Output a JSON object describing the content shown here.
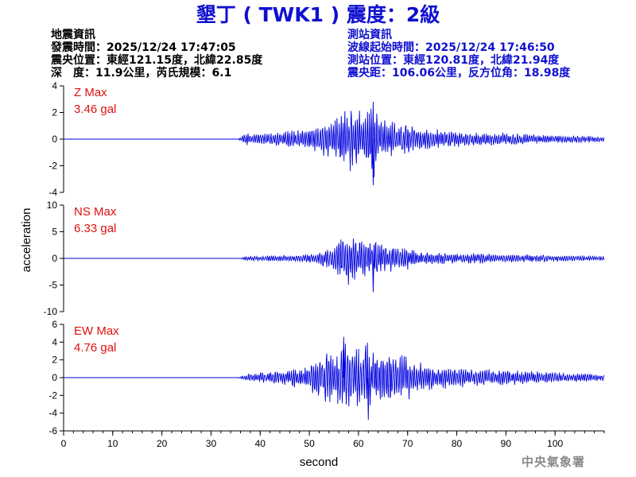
{
  "title": "墾丁 ( TWK1 ) 震度：2級",
  "earthquake_info": {
    "heading": "地震資訊",
    "origin_time": "發震時間：2025/12/24 17:47:05",
    "epicenter": "震央位置：東經121.15度，北緯22.85度",
    "depth_magnitude": "深　度：11.9公里，芮氏規模：6.1"
  },
  "station_info": {
    "heading": "測站資訊",
    "wave_onset_time": "波線起始時間：2025/12/24 17:46:50",
    "station_location": "測站位置：東經120.81度，北緯21.94度",
    "distance_azimuth": "震央距：106.06公里，反方位角：18.98度"
  },
  "watermark": "中央氣象署",
  "colors": {
    "trace": "#0000dd",
    "title": "#1010d0",
    "panel_label": "#e01010"
  },
  "chart_data": {
    "type": "line",
    "xlabel": "second",
    "ylabel": "acceleration",
    "xlim": [
      0,
      110
    ],
    "x_ticks": [
      0,
      10,
      20,
      30,
      40,
      50,
      60,
      70,
      80,
      90,
      100
    ],
    "panels": [
      {
        "name": "Z",
        "label_title": "Z Max",
        "label_value": "3.46 gal",
        "max": 3.46,
        "ylim": [
          -4,
          4
        ],
        "y_ticks": [
          4,
          2,
          0,
          -2,
          -4
        ],
        "series": {
          "x": [
            0,
            35.5,
            37,
            40,
            45,
            50,
            53,
            55,
            56,
            57,
            58,
            59,
            60,
            61,
            62,
            62.5,
            63,
            64,
            66,
            68,
            70,
            72,
            75,
            80,
            85,
            90,
            95,
            100,
            105,
            110
          ],
          "y": [
            0,
            0,
            0.5,
            0.4,
            0.6,
            0.8,
            1.5,
            1.2,
            2.5,
            -2.5,
            2.6,
            -2.2,
            2.4,
            -1.8,
            2.2,
            3.0,
            -3.46,
            1.6,
            1.8,
            1.2,
            1.6,
            1.0,
            0.8,
            0.6,
            0.5,
            0.5,
            0.4,
            0.3,
            0.3,
            0.2
          ]
        }
      },
      {
        "name": "NS",
        "label_title": "NS Max",
        "label_value": "6.33 gal",
        "max": 6.33,
        "ylim": [
          -10,
          10
        ],
        "y_ticks": [
          10,
          5,
          0,
          -5,
          -10
        ],
        "series": {
          "x": [
            0,
            35.5,
            37,
            40,
            45,
            50,
            53,
            55,
            56,
            57,
            58,
            59,
            60,
            61,
            62,
            62.5,
            63,
            64,
            66,
            68,
            70,
            72,
            75,
            80,
            85,
            90,
            95,
            100,
            105,
            110
          ],
          "y": [
            0,
            0,
            0.4,
            0.5,
            0.6,
            0.9,
            1.8,
            2.2,
            4.0,
            -4.8,
            5.4,
            -4.5,
            3.6,
            -3.2,
            4.8,
            3.5,
            -6.33,
            3.0,
            2.8,
            2.0,
            2.2,
            1.6,
            1.2,
            1.0,
            1.0,
            0.8,
            0.8,
            0.6,
            0.5,
            0.4
          ]
        }
      },
      {
        "name": "EW",
        "label_title": "EW Max",
        "label_value": "4.76 gal",
        "max": 4.76,
        "ylim": [
          -6,
          6
        ],
        "y_ticks": [
          6,
          4,
          2,
          0,
          -2,
          -4,
          -6
        ],
        "series": {
          "x": [
            0,
            35.5,
            37,
            40,
            45,
            50,
            53,
            55,
            56,
            57,
            58,
            59,
            60,
            61,
            62,
            62.5,
            63,
            64,
            66,
            68,
            70,
            72,
            75,
            80,
            85,
            90,
            95,
            100,
            105,
            110
          ],
          "y": [
            0,
            0,
            0.4,
            0.6,
            0.9,
            1.4,
            3.0,
            2.8,
            3.4,
            4.6,
            -4.2,
            3.8,
            -3.6,
            4.0,
            -4.76,
            3.2,
            3.5,
            3.0,
            3.2,
            2.6,
            2.8,
            1.8,
            1.4,
            1.2,
            1.0,
            0.9,
            0.8,
            0.6,
            0.5,
            0.4
          ]
        }
      }
    ]
  }
}
